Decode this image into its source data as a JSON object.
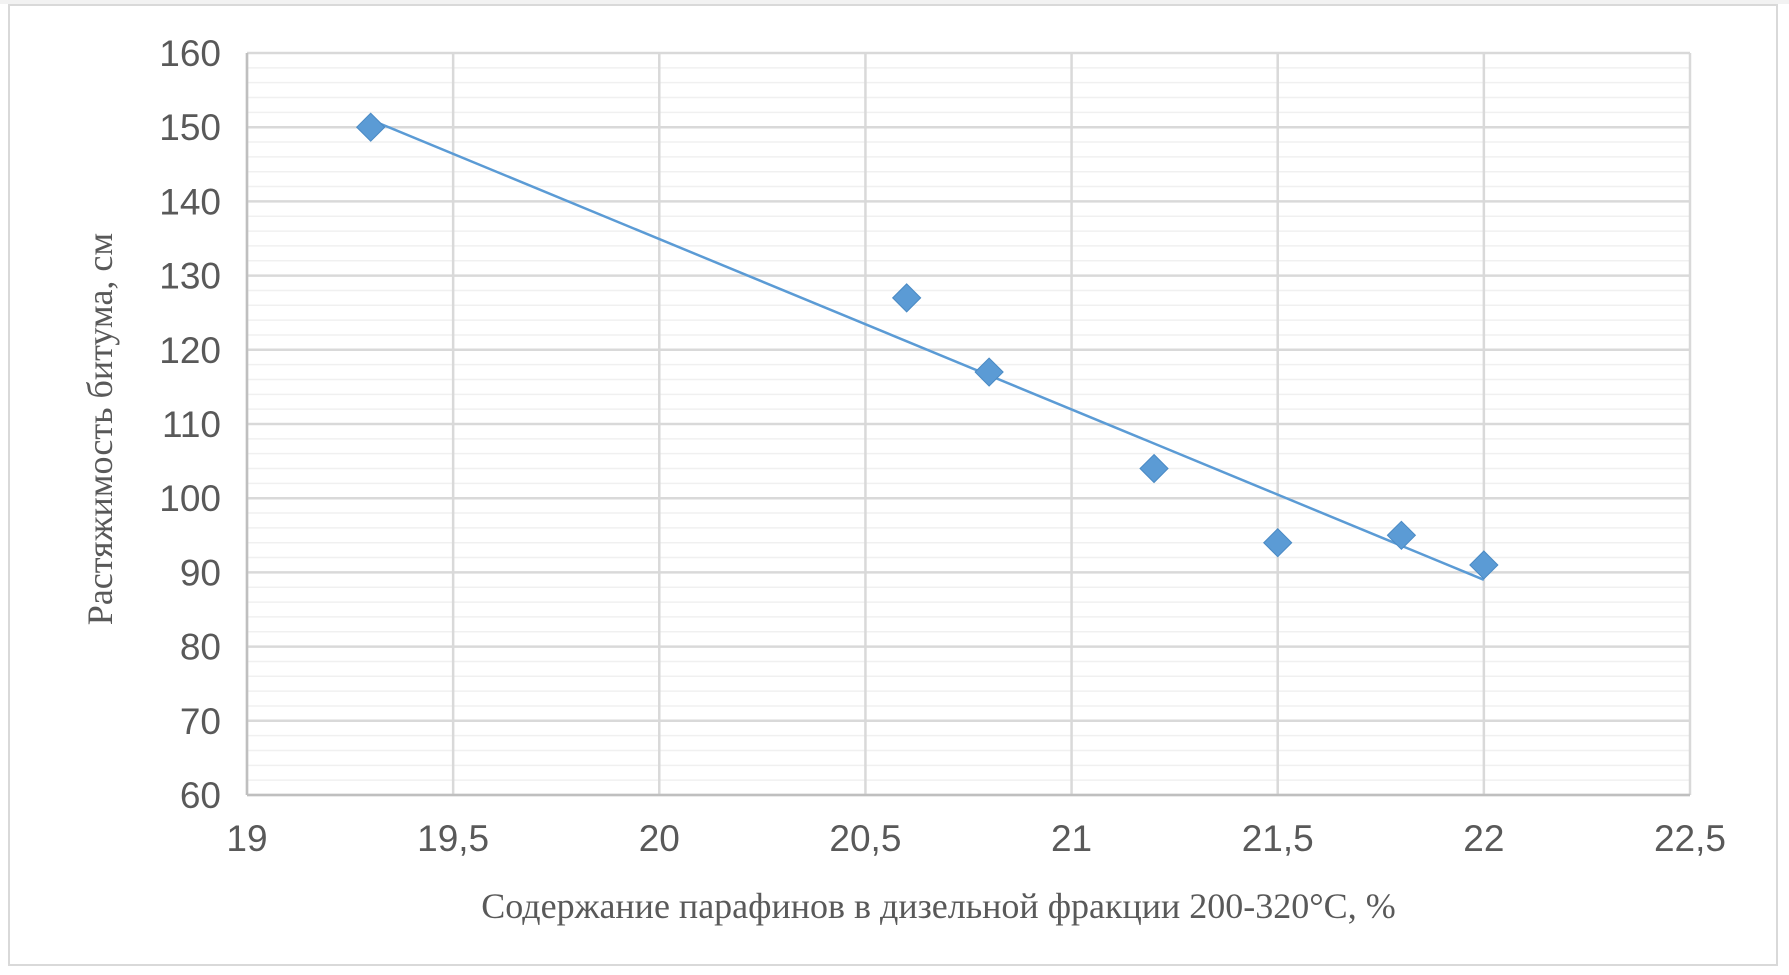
{
  "chart_data": {
    "type": "scatter",
    "xlabel": "Содержание парафинов в дизельной фракции 200-320°C, %",
    "ylabel": "Растяжимость битума, см",
    "xlim": [
      19,
      22.5
    ],
    "ylim": [
      60,
      160
    ],
    "x_ticks": [
      19,
      19.5,
      20,
      20.5,
      21,
      21.5,
      22,
      22.5
    ],
    "x_tick_labels": [
      "19",
      "19,5",
      "20",
      "20,5",
      "21",
      "21,5",
      "22",
      "22,5"
    ],
    "y_ticks": [
      60,
      70,
      80,
      90,
      100,
      110,
      120,
      130,
      140,
      150,
      160
    ],
    "y_tick_labels": [
      "60",
      "70",
      "80",
      "90",
      "100",
      "110",
      "120",
      "130",
      "140",
      "150",
      "160"
    ],
    "grid": true,
    "legend": "none",
    "series": [
      {
        "marker": "diamond",
        "color": "#5b9bd5",
        "points": [
          {
            "x": 19.3,
            "y": 150
          },
          {
            "x": 20.6,
            "y": 127
          },
          {
            "x": 20.8,
            "y": 117
          },
          {
            "x": 21.2,
            "y": 104
          },
          {
            "x": 21.5,
            "y": 94
          },
          {
            "x": 21.8,
            "y": 95
          },
          {
            "x": 22.0,
            "y": 91
          }
        ]
      }
    ],
    "trendline": {
      "type": "linear",
      "color": "#5b9bd5",
      "x_range": [
        19.3,
        22.0
      ],
      "y_values": [
        151,
        89
      ]
    }
  }
}
